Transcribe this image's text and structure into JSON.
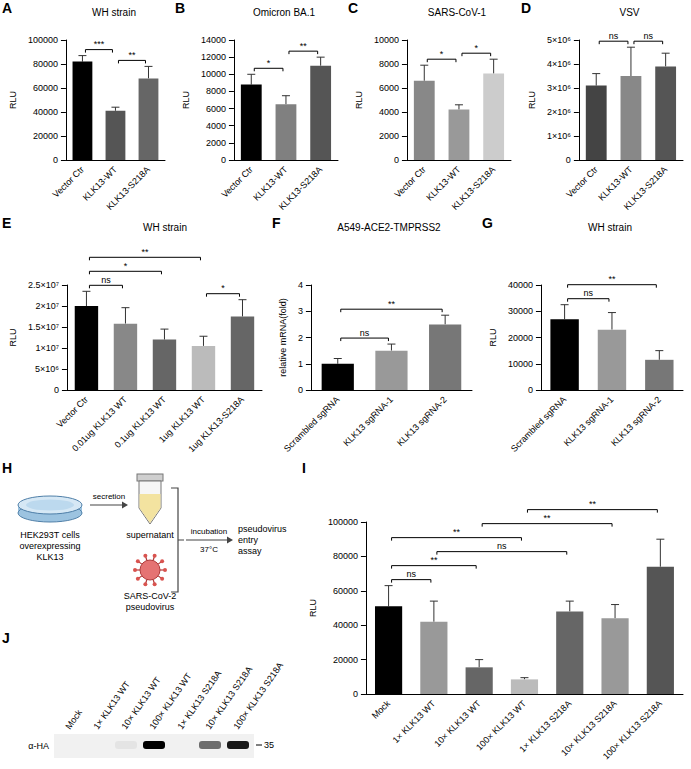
{
  "chart_data": [
    {
      "panel": "A",
      "type": "bar",
      "title": "WH strain",
      "y_label": "RLU",
      "categories": [
        "Vector Ctr",
        "KLK13-WT",
        "KLK13-S218A"
      ],
      "values": [
        82000,
        41000,
        68000
      ],
      "errors": [
        5000,
        3000,
        10000
      ],
      "colors": [
        "#000000",
        "#555555",
        "#666666"
      ],
      "ylim": [
        0,
        100000
      ],
      "yticks": [
        0,
        20000,
        40000,
        60000,
        80000,
        100000
      ],
      "grid": false,
      "annotations": [
        {
          "from": 0,
          "to": 1,
          "text": "***"
        },
        {
          "from": 1,
          "to": 2,
          "text": "**"
        }
      ]
    },
    {
      "panel": "B",
      "type": "bar",
      "title": "Omicron BA.1",
      "y_label": "RLU",
      "categories": [
        "Vector Ctr",
        "KLK13-WT",
        "KLK13-S218A"
      ],
      "values": [
        8800,
        6500,
        11000
      ],
      "errors": [
        1200,
        1000,
        1000
      ],
      "colors": [
        "#000000",
        "#808080",
        "#555555"
      ],
      "ylim": [
        0,
        14000
      ],
      "yticks": [
        0,
        2000,
        4000,
        6000,
        8000,
        10000,
        12000,
        14000
      ],
      "grid": false,
      "annotations": [
        {
          "from": 0,
          "to": 1,
          "text": "*"
        },
        {
          "from": 1,
          "to": 2,
          "text": "**"
        }
      ]
    },
    {
      "panel": "C",
      "type": "bar",
      "title": "SARS-CoV-1",
      "y_label": "RLU",
      "categories": [
        "Vector Ctr",
        "KLK13-WT",
        "KLK13-S218A"
      ],
      "values": [
        6600,
        4200,
        7200
      ],
      "errors": [
        1300,
        400,
        1200
      ],
      "colors": [
        "#888888",
        "#999999",
        "#cccccc"
      ],
      "ylim": [
        0,
        10000
      ],
      "yticks": [
        0,
        2000,
        4000,
        6000,
        8000,
        10000
      ],
      "grid": false,
      "annotations": [
        {
          "from": 0,
          "to": 1,
          "text": "*"
        },
        {
          "from": 1,
          "to": 2,
          "text": "*"
        }
      ]
    },
    {
      "panel": "D",
      "type": "bar",
      "title": "VSV",
      "y_label": "RLU",
      "categories": [
        "Vector Ctr",
        "KLK13-WT",
        "KLK13-S218A"
      ],
      "values": [
        3100000,
        3500000,
        3900000
      ],
      "errors": [
        500000,
        1200000,
        550000
      ],
      "colors": [
        "#444444",
        "#888888",
        "#555555"
      ],
      "ylim": [
        0,
        5000000
      ],
      "yticks": [
        0,
        {
          "value": 1000000,
          "label": "1×10⁶"
        },
        {
          "value": 2000000,
          "label": "2×10⁶"
        },
        {
          "value": 3000000,
          "label": "3×10⁶"
        },
        {
          "value": 4000000,
          "label": "4×10⁶"
        },
        {
          "value": 5000000,
          "label": "5×10⁶"
        }
      ],
      "grid": false,
      "annotations": [
        {
          "from": 0,
          "to": 1,
          "text": "ns"
        },
        {
          "from": 1,
          "to": 2,
          "text": "ns"
        }
      ]
    },
    {
      "panel": "E",
      "type": "bar",
      "title": "WH strain",
      "y_label": "RLU",
      "categories": [
        "Vector Ctr",
        "0.01ug KLK13 WT",
        "0.1ug KLK13 WT",
        "1ug KLK13 WT",
        "1ug KLK13-S218A"
      ],
      "values": [
        20000000,
        15800000,
        12000000,
        10500000,
        17500000
      ],
      "errors": [
        3500000,
        3800000,
        2500000,
        2300000,
        4000000
      ],
      "colors": [
        "#000000",
        "#888888",
        "#666666",
        "#bbbbbb",
        "#666666"
      ],
      "ylim": [
        0,
        25000000
      ],
      "yticks": [
        0,
        {
          "value": 5000000,
          "label": "5×10⁶"
        },
        {
          "value": 10000000,
          "label": "1×10⁷"
        },
        {
          "value": 15000000,
          "label": "1.5×10⁷"
        },
        {
          "value": 20000000,
          "label": "2×10⁷"
        },
        {
          "value": 25000000,
          "label": "2.5×10⁷"
        }
      ],
      "grid": false,
      "annotations": [
        {
          "from": 0,
          "to": 1,
          "text": "ns"
        },
        {
          "from": 0,
          "to": 2,
          "text": "*"
        },
        {
          "from": 0,
          "to": 3,
          "text": "**"
        },
        {
          "from": 3,
          "to": 4,
          "text": "*"
        }
      ]
    },
    {
      "panel": "F",
      "type": "bar",
      "title": "A549-ACE2-TMPRSS2",
      "y_label": "relative mRNA(fold)",
      "categories": [
        "Scrambled sgRNA",
        "KLK13 sgRNA-1",
        "KLK13 sgRNA-2"
      ],
      "values": [
        1.0,
        1.5,
        2.5
      ],
      "errors": [
        0.2,
        0.25,
        0.35
      ],
      "colors": [
        "#000000",
        "#999999",
        "#777777"
      ],
      "ylim": [
        0,
        4
      ],
      "yticks": [
        0,
        1,
        2,
        3,
        4
      ],
      "grid": false,
      "annotations": [
        {
          "from": 0,
          "to": 1,
          "text": "ns"
        },
        {
          "from": 0,
          "to": 2,
          "text": "**"
        }
      ]
    },
    {
      "panel": "G",
      "type": "bar",
      "title": "WH strain",
      "y_label": "RLU",
      "categories": [
        "Scrambled sgRNA",
        "KLK13 sgRNA-1",
        "KLK13 sgRNA-2"
      ],
      "values": [
        27000,
        23000,
        11500
      ],
      "errors": [
        5500,
        6500,
        3500
      ],
      "colors": [
        "#000000",
        "#999999",
        "#777777"
      ],
      "ylim": [
        0,
        40000
      ],
      "yticks": [
        0,
        10000,
        20000,
        30000,
        40000
      ],
      "grid": false,
      "annotations": [
        {
          "from": 0,
          "to": 1,
          "text": "ns"
        },
        {
          "from": 0,
          "to": 2,
          "text": "**"
        }
      ]
    },
    {
      "panel": "I",
      "type": "bar",
      "y_label": "RLU",
      "categories": [
        "Mock",
        "1× KLK13 WT",
        "10× KLK13 WT",
        "100× KLK13 WT",
        "1× KLK13 S218A",
        "10× KLK13 S218A",
        "100× KLK13 S218A"
      ],
      "values": [
        51000,
        42000,
        15500,
        8500,
        48000,
        44000,
        74000
      ],
      "errors": [
        12000,
        12000,
        4500,
        1000,
        6000,
        8000,
        16000
      ],
      "colors": [
        "#000000",
        "#999999",
        "#666666",
        "#bbbbbb",
        "#666666",
        "#999999",
        "#555555"
      ],
      "ylim": [
        0,
        100000
      ],
      "yticks": [
        0,
        20000,
        40000,
        60000,
        80000,
        100000
      ],
      "grid": false,
      "annotations": [
        {
          "from": 0,
          "to": 1,
          "text": "ns"
        },
        {
          "from": 1,
          "to": 4,
          "text": "ns"
        },
        {
          "from": 0,
          "to": 2,
          "text": "**"
        },
        {
          "from": 0,
          "to": 3,
          "text": "**"
        },
        {
          "from": 2,
          "to": 5,
          "text": "**"
        },
        {
          "from": 3,
          "to": 6,
          "text": "**"
        }
      ]
    }
  ],
  "diagram": {
    "panel": "H",
    "cells": "HEK293T cells overexpressing KLK13",
    "secretion": "secretion",
    "supernatant": "supernatant",
    "virus": "SARS-CoV-2 pseudovirus",
    "incubation": "incubation",
    "temperature": "37°C",
    "assay": "pseudovirus entry assay"
  },
  "blot": {
    "panel": "J",
    "lanes": [
      "Mock",
      "1× KLK13 WT",
      "10× KLK13 WT",
      "100× KLK13 WT",
      "1× KLK13 S218A",
      "10× KLK13 S218A",
      "100× KLK13 S218A"
    ],
    "antibody": "α-HA",
    "marker": 35,
    "band_intensity": [
      0,
      0,
      0.05,
      1,
      0,
      0.55,
      0.9
    ]
  }
}
